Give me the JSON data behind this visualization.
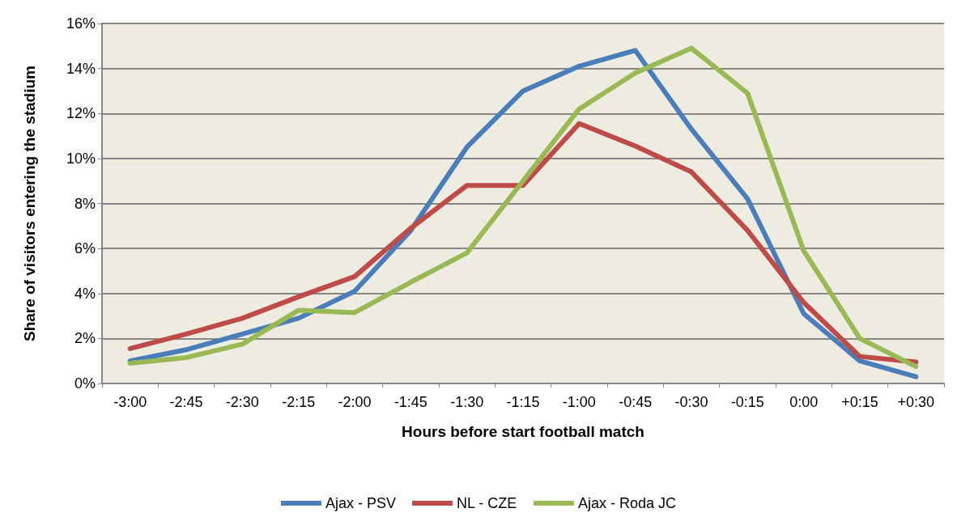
{
  "chart_data": {
    "type": "line",
    "xlabel": "Hours before start football match",
    "ylabel": "Share of visitors entering the stadium",
    "categories": [
      "-3:00",
      "-2:45",
      "-2:30",
      "-2:15",
      "-2:00",
      "-1:45",
      "-1:30",
      "-1:15",
      "-1:00",
      "-0:45",
      "-0:30",
      "-0:15",
      "0:00",
      "+0:15",
      "+0:30"
    ],
    "ylim": [
      0,
      16
    ],
    "yticks": [
      {
        "value": 0,
        "label": "0%"
      },
      {
        "value": 2,
        "label": "2%"
      },
      {
        "value": 4,
        "label": "4%"
      },
      {
        "value": 6,
        "label": "6%"
      },
      {
        "value": 8,
        "label": "8%"
      },
      {
        "value": 10,
        "label": "10%"
      },
      {
        "value": 12,
        "label": "12%"
      },
      {
        "value": 14,
        "label": "14%"
      },
      {
        "value": 16,
        "label": "16%"
      }
    ],
    "grid": "y",
    "legend": "bottom",
    "marker": "none",
    "line_style": "solid",
    "series": [
      {
        "name": "Ajax - PSV",
        "color": "#4a7ebb",
        "values": [
          1.0,
          1.5,
          2.2,
          2.9,
          4.1,
          6.8,
          10.5,
          13.0,
          14.1,
          14.8,
          11.3,
          8.2,
          3.1,
          1.0,
          0.3
        ]
      },
      {
        "name": "NL - CZE",
        "color": "#be4b48",
        "values": [
          1.55,
          2.2,
          2.9,
          3.85,
          4.75,
          6.9,
          8.8,
          8.8,
          11.55,
          10.55,
          9.4,
          6.8,
          3.6,
          1.2,
          0.95
        ]
      },
      {
        "name": "Ajax - Roda JC",
        "color": "#98b954",
        "values": [
          0.9,
          1.15,
          1.75,
          3.25,
          3.15,
          4.5,
          5.8,
          9.0,
          12.2,
          13.8,
          14.9,
          12.9,
          5.9,
          2.0,
          0.75
        ]
      }
    ]
  }
}
